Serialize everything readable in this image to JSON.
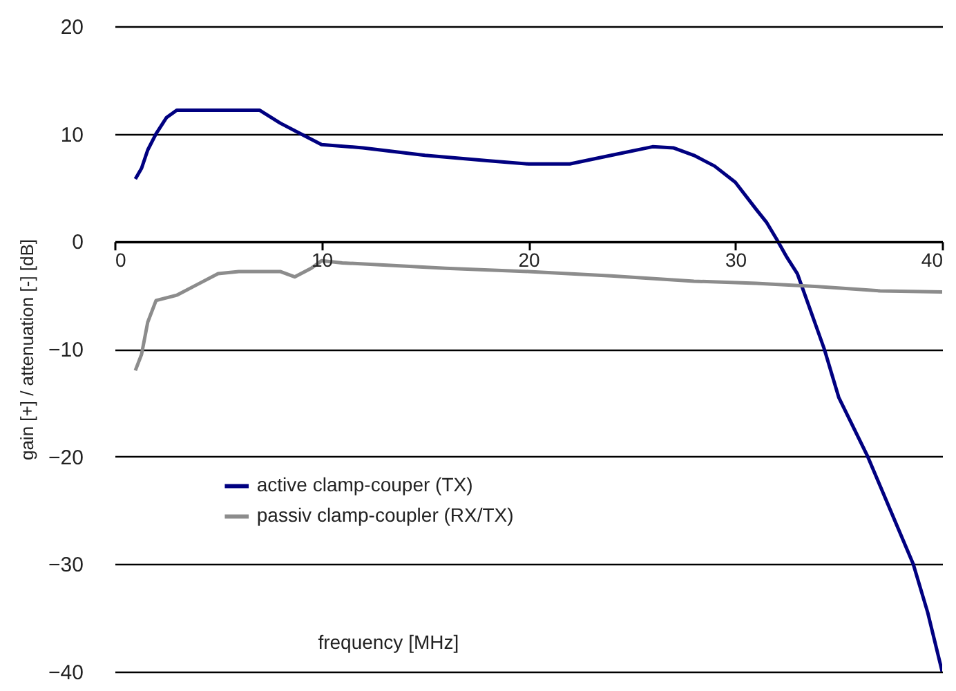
{
  "chart_data": {
    "type": "line",
    "xlabel": "frequency [MHz]",
    "ylabel": "gain [+] / attenuation [-] [dB]",
    "xlim": [
      0,
      40
    ],
    "xticks": [
      0,
      10,
      20,
      30,
      40
    ],
    "ylim": [
      -40,
      20
    ],
    "yticks": [
      -40,
      -30,
      -20,
      -10,
      0,
      10,
      20
    ],
    "grid": "y",
    "legend": "bottom left",
    "line_style": "solid",
    "marker": "none",
    "series": [
      {
        "name": "active clamp-couper (TX)",
        "color": "#000080",
        "x": [
          1,
          1.3,
          1.6,
          2,
          2.5,
          3,
          5,
          7,
          8,
          9,
          10,
          12,
          15,
          18,
          20,
          22,
          24,
          26,
          27,
          28,
          29,
          30,
          31,
          31.5,
          32,
          32.5,
          33,
          34.3,
          35,
          36.4,
          37.5,
          38.6,
          39.3,
          40
        ],
        "values": [
          5.8,
          6.8,
          8.5,
          10,
          11.5,
          12.2,
          12.2,
          12.2,
          11,
          10,
          9,
          8.7,
          8,
          7.5,
          7.2,
          7.2,
          8,
          8.8,
          8.7,
          8,
          7,
          5.5,
          3,
          1.8,
          0.2,
          -1.5,
          -3,
          -10,
          -14.5,
          -20,
          -25,
          -30,
          -34.5,
          -40
        ]
      },
      {
        "name": "passiv clamp-coupler (RX/TX)",
        "color": "#8c8c8c",
        "x": [
          1,
          1.3,
          1.6,
          2,
          3,
          4,
          5,
          6,
          8,
          8.7,
          9.5,
          10,
          11,
          13,
          16,
          20,
          24,
          28,
          31,
          34,
          37,
          40
        ],
        "values": [
          -12,
          -10.5,
          -7.5,
          -5.5,
          -5,
          -4,
          -3,
          -2.8,
          -2.8,
          -3.3,
          -2.5,
          -1.8,
          -2,
          -2.2,
          -2.5,
          -2.8,
          -3.2,
          -3.7,
          -3.9,
          -4.2,
          -4.6,
          -4.7
        ]
      }
    ]
  }
}
